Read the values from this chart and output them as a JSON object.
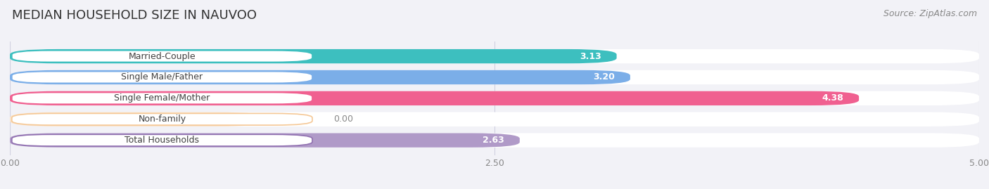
{
  "title": "MEDIAN HOUSEHOLD SIZE IN NAUVOO",
  "source": "Source: ZipAtlas.com",
  "categories": [
    "Married-Couple",
    "Single Male/Father",
    "Single Female/Mother",
    "Non-family",
    "Total Households"
  ],
  "values": [
    3.13,
    3.2,
    4.38,
    0.0,
    2.63
  ],
  "bar_colors": [
    "#3dbfbf",
    "#7baee8",
    "#f06090",
    "#f5c896",
    "#b09ac8"
  ],
  "label_colors": [
    "#3dbfbf",
    "#7baee8",
    "#f06090",
    "#f5c896",
    "#9070b0"
  ],
  "xlim": [
    0,
    5.0
  ],
  "xticks": [
    0.0,
    2.5,
    5.0
  ],
  "background_color": "#f2f2f7",
  "title_fontsize": 13,
  "label_fontsize": 9,
  "value_fontsize": 9,
  "source_fontsize": 9
}
